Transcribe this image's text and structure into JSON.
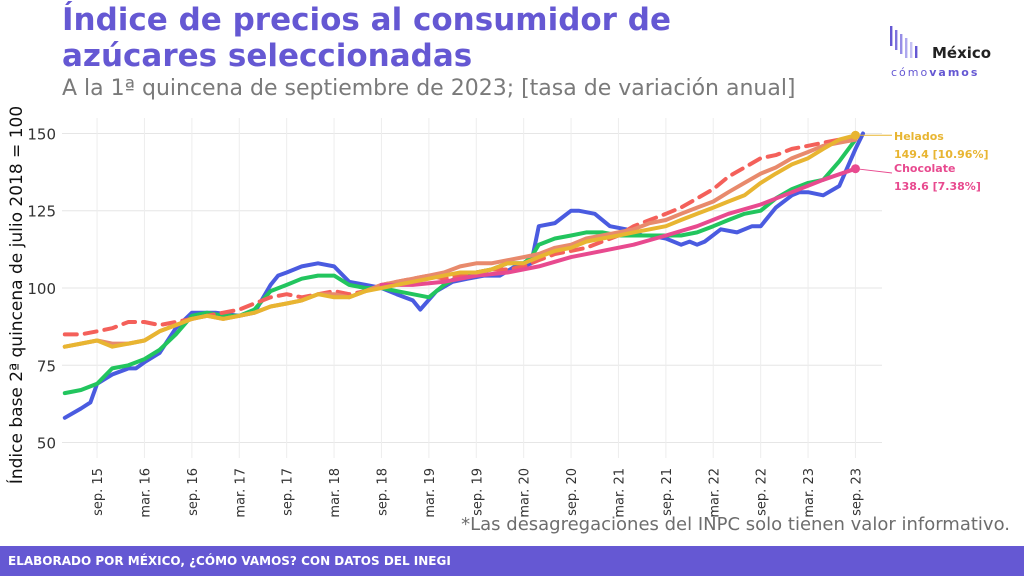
{
  "header": {
    "title_line1": "Índice de precios al consumidor de",
    "title_line2": "azúcares seleccionadas",
    "subtitle": "A la 1ª quincena de septiembre de 2023; [tasa de variación anual]"
  },
  "logo": {
    "mexico": "México",
    "como": "cómo",
    "vamos": "vamos"
  },
  "note": "*Las desagregaciones del INPC solo tienen valor informativo.",
  "footer": {
    "text": "ELABORADO POR MÉXICO, ¿CÓMO VAMOS? CON DATOS DEL INEGI"
  },
  "colors": {
    "accent": "#6558d3",
    "blue": "#4a5be0",
    "green": "#22c55e",
    "red": "#f4605a",
    "salmon": "#e88a6c",
    "pink": "#e84a8f",
    "gold": "#e8b531"
  },
  "chart_data": {
    "type": "line",
    "ylabel": "Índice base 2ª quincena de julio 2018 = 100",
    "ylim": [
      45,
      155
    ],
    "yticks": [
      50,
      75,
      100,
      125,
      150
    ],
    "xlim": [
      2015.3,
      2023.95
    ],
    "grid": true,
    "x_tick_labels": [
      "sep. 15",
      "mar. 16",
      "sep. 16",
      "mar. 17",
      "sep. 17",
      "mar. 18",
      "sep. 18",
      "mar. 19",
      "sep. 19",
      "mar. 20",
      "sep. 20",
      "mar. 21",
      "sep. 21",
      "mar. 22",
      "sep. 22",
      "mar. 23",
      "sep. 23"
    ],
    "x_tick_values": [
      2015.67,
      2016.17,
      2016.67,
      2017.17,
      2017.67,
      2018.17,
      2018.67,
      2019.17,
      2019.67,
      2020.17,
      2020.67,
      2021.17,
      2021.67,
      2022.17,
      2022.67,
      2023.17,
      2023.67
    ],
    "annotations": [
      {
        "name": "Helados",
        "value_text": "149.4 [10.96%]",
        "color": "#e8b531"
      },
      {
        "name": "Chocolate",
        "value_text": "138.6 [7.38%]",
        "color": "#e84a8f"
      }
    ],
    "series": [
      {
        "color": "#4a5be0",
        "dashed": false,
        "x": [
          2015.33,
          2015.5,
          2015.6,
          2015.67,
          2015.83,
          2016.0,
          2016.08,
          2016.17,
          2016.33,
          2016.5,
          2016.67,
          2016.75,
          2016.92,
          2017.17,
          2017.33,
          2017.5,
          2017.58,
          2017.67,
          2017.83,
          2018.0,
          2018.17,
          2018.33,
          2018.5,
          2018.67,
          2018.83,
          2019.0,
          2019.08,
          2019.25,
          2019.42,
          2019.58,
          2019.75,
          2019.92,
          2020.08,
          2020.17,
          2020.25,
          2020.33,
          2020.5,
          2020.67,
          2020.75,
          2020.92,
          2021.08,
          2021.25,
          2021.42,
          2021.5,
          2021.67,
          2021.83,
          2021.92,
          2022.0,
          2022.08,
          2022.25,
          2022.42,
          2022.58,
          2022.67,
          2022.83,
          2023.0,
          2023.08,
          2023.17,
          2023.33,
          2023.5,
          2023.67,
          2023.75
        ],
        "values": [
          58,
          61,
          63,
          69,
          72,
          74,
          74,
          76,
          79,
          87,
          92,
          92,
          92,
          91,
          92,
          101,
          104,
          105,
          107,
          108,
          107,
          102,
          101,
          100,
          98,
          96,
          93,
          99,
          102,
          103,
          104,
          104,
          107,
          107,
          108,
          120,
          121,
          125,
          125,
          124,
          120,
          119,
          117,
          117,
          116,
          114,
          115,
          114,
          115,
          119,
          118,
          120,
          120,
          126,
          130,
          131,
          131,
          130,
          133,
          145,
          150
        ]
      },
      {
        "color": "#22c55e",
        "dashed": false,
        "x": [
          2015.33,
          2015.5,
          2015.67,
          2015.83,
          2016.0,
          2016.17,
          2016.33,
          2016.5,
          2016.67,
          2016.83,
          2017.0,
          2017.17,
          2017.33,
          2017.5,
          2017.67,
          2017.83,
          2018.0,
          2018.17,
          2018.33,
          2018.5,
          2018.67,
          2018.83,
          2019.0,
          2019.17,
          2019.33,
          2019.5,
          2019.67,
          2019.83,
          2020.0,
          2020.17,
          2020.25,
          2020.33,
          2020.5,
          2020.67,
          2020.83,
          2021.0,
          2021.17,
          2021.33,
          2021.5,
          2021.67,
          2021.83,
          2022.0,
          2022.17,
          2022.33,
          2022.5,
          2022.67,
          2022.83,
          2023.0,
          2023.17,
          2023.33,
          2023.5,
          2023.67
        ],
        "values": [
          66,
          67,
          69,
          74,
          75,
          77,
          80,
          85,
          91,
          92,
          91,
          91,
          93,
          99,
          101,
          103,
          104,
          104,
          101,
          100,
          100,
          99,
          98,
          97,
          101,
          104,
          105,
          106,
          108,
          108,
          110,
          114,
          116,
          117,
          118,
          118,
          117,
          117,
          117,
          117,
          117,
          118,
          120,
          122,
          124,
          125,
          129,
          132,
          134,
          135,
          141,
          148
        ]
      },
      {
        "color": "#f4605a",
        "dashed": true,
        "x": [
          2015.33,
          2015.5,
          2015.67,
          2015.83,
          2016.0,
          2016.17,
          2016.33,
          2016.5,
          2016.67,
          2016.83,
          2017.0,
          2017.17,
          2017.33,
          2017.5,
          2017.67,
          2017.83,
          2018.0,
          2018.17,
          2018.33,
          2018.5,
          2018.67,
          2018.83,
          2019.0,
          2019.17,
          2019.33,
          2019.5,
          2019.67,
          2019.83,
          2020.0,
          2020.17,
          2020.33,
          2020.5,
          2020.67,
          2020.83,
          2021.0,
          2021.17,
          2021.33,
          2021.5,
          2021.67,
          2021.83,
          2022.0,
          2022.17,
          2022.33,
          2022.5,
          2022.67,
          2022.83,
          2023.0,
          2023.17,
          2023.33,
          2023.5,
          2023.67
        ],
        "values": [
          85,
          85,
          86,
          87,
          89,
          89,
          88,
          89,
          90,
          91,
          92,
          93,
          95,
          97,
          98,
          97,
          98,
          99,
          98,
          99,
          101,
          102,
          103,
          104,
          103,
          104,
          105,
          106,
          106,
          107,
          109,
          111,
          112,
          113,
          115,
          117,
          120,
          122,
          124,
          126,
          129,
          132,
          136,
          139,
          142,
          143,
          145,
          146,
          147,
          148,
          149
        ]
      },
      {
        "color": "#e88a6c",
        "dashed": false,
        "x": [
          2015.33,
          2015.5,
          2015.67,
          2015.83,
          2016.0,
          2016.17,
          2016.33,
          2016.5,
          2016.67,
          2016.83,
          2017.0,
          2017.17,
          2017.33,
          2017.5,
          2017.67,
          2017.83,
          2018.0,
          2018.17,
          2018.33,
          2018.5,
          2018.67,
          2018.83,
          2019.0,
          2019.17,
          2019.33,
          2019.5,
          2019.67,
          2019.83,
          2020.0,
          2020.17,
          2020.33,
          2020.5,
          2020.67,
          2020.83,
          2021.0,
          2021.17,
          2021.33,
          2021.5,
          2021.67,
          2021.83,
          2022.0,
          2022.17,
          2022.33,
          2022.5,
          2022.67,
          2022.83,
          2023.0,
          2023.17,
          2023.33,
          2023.5,
          2023.67
        ],
        "values": [
          81,
          82,
          83,
          82,
          82,
          83,
          86,
          88,
          90,
          91,
          90,
          91,
          92,
          94,
          95,
          96,
          98,
          98,
          97,
          99,
          101,
          102,
          103,
          104,
          105,
          107,
          108,
          108,
          109,
          110,
          111,
          113,
          114,
          116,
          117,
          118,
          119,
          121,
          122,
          124,
          126,
          128,
          131,
          134,
          137,
          139,
          142,
          144,
          146,
          147,
          148
        ]
      },
      {
        "color": "#e84a8f",
        "dashed": false,
        "x": [
          2018.67,
          2019.0,
          2019.33,
          2019.67,
          2020.0,
          2020.33,
          2020.67,
          2021.0,
          2021.33,
          2021.67,
          2022.0,
          2022.33,
          2022.67,
          2023.0,
          2023.33,
          2023.67
        ],
        "values": [
          101,
          101,
          102,
          104,
          105,
          107,
          110,
          112,
          114,
          117,
          120,
          124,
          127,
          131,
          135,
          138.6
        ]
      },
      {
        "color": "#e8b531",
        "dashed": false,
        "x": [
          2015.33,
          2015.5,
          2015.67,
          2015.83,
          2016.0,
          2016.17,
          2016.33,
          2016.5,
          2016.67,
          2016.83,
          2017.0,
          2017.17,
          2017.33,
          2017.5,
          2017.67,
          2017.83,
          2018.0,
          2018.17,
          2018.33,
          2018.5,
          2018.67,
          2018.83,
          2019.0,
          2019.17,
          2019.33,
          2019.5,
          2019.67,
          2019.83,
          2020.0,
          2020.17,
          2020.33,
          2020.5,
          2020.67,
          2020.83,
          2021.0,
          2021.17,
          2021.33,
          2021.5,
          2021.67,
          2021.83,
          2022.0,
          2022.17,
          2022.33,
          2022.5,
          2022.67,
          2022.83,
          2023.0,
          2023.17,
          2023.33,
          2023.5,
          2023.67
        ],
        "values": [
          81,
          82,
          83,
          81,
          82,
          83,
          86,
          88,
          90,
          91,
          90,
          91,
          92,
          94,
          95,
          96,
          98,
          97,
          97,
          99,
          100,
          101,
          102,
          103,
          104,
          105,
          105,
          106,
          108,
          108,
          110,
          112,
          113,
          115,
          116,
          117,
          118,
          119,
          120,
          122,
          124,
          126,
          128,
          130,
          134,
          137,
          140,
          142,
          145,
          148,
          149.4
        ]
      }
    ]
  }
}
